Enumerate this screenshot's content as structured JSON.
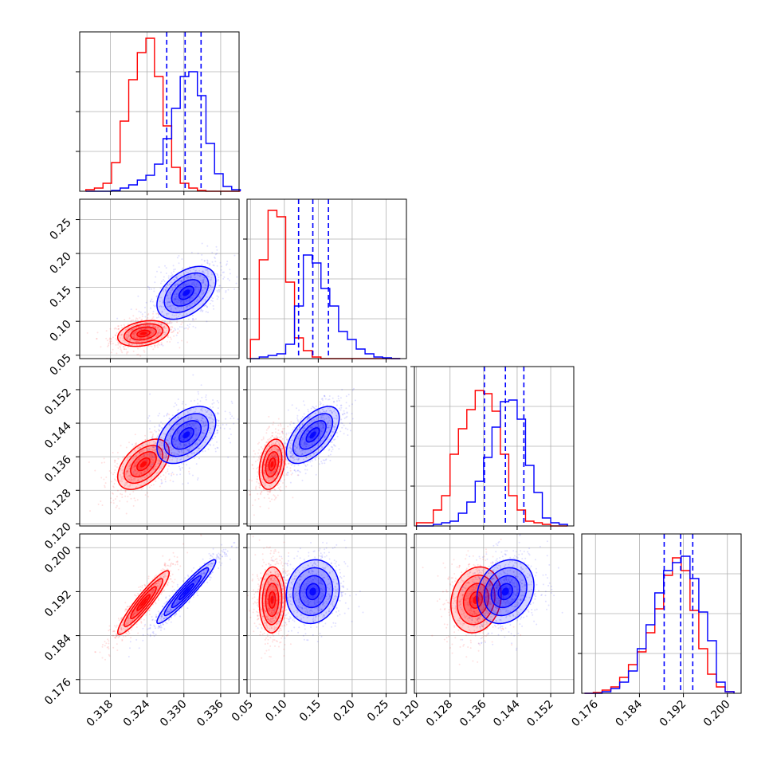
{
  "chart_data": {
    "type": "scatter",
    "kind": "corner",
    "title": "",
    "grid": true,
    "colors": {
      "red": "#ff0000",
      "blue": "#0000ff"
    },
    "series": [
      {
        "color": "red",
        "mean": [
          0.3234,
          0.082,
          0.1342,
          0.19
        ]
      },
      {
        "color": "blue",
        "mean": [
          0.3304,
          0.142,
          0.1412,
          0.192
        ]
      }
    ],
    "quantiles_blue": [
      [
        0.3272,
        0.3302,
        0.3328
      ],
      [
        0.121,
        0.142,
        0.165
      ],
      [
        0.1362,
        0.1412,
        0.1456
      ],
      [
        0.1885,
        0.1915,
        0.1937
      ]
    ],
    "parameters": [
      {
        "range": [
          0.313,
          0.339
        ],
        "ticks": [
          0.318,
          0.324,
          0.33,
          0.336
        ],
        "tick_labels": [
          "0.318",
          "0.324",
          "0.330",
          "0.336"
        ]
      },
      {
        "range": [
          0.045,
          0.28
        ],
        "ticks": [
          0.05,
          0.1,
          0.15,
          0.2,
          0.25
        ],
        "tick_labels": [
          "0.05",
          "0.10",
          "0.15",
          "0.20",
          "0.25"
        ]
      },
      {
        "range": [
          0.1195,
          0.1575
        ],
        "ticks": [
          0.12,
          0.128,
          0.136,
          0.144,
          0.152
        ],
        "tick_labels": [
          "0.120",
          "0.128",
          "0.136",
          "0.144",
          "0.152"
        ]
      },
      {
        "range": [
          0.1735,
          0.2025
        ],
        "ticks": [
          0.176,
          0.184,
          0.192,
          0.2
        ],
        "tick_labels": [
          "0.176",
          "0.184",
          "0.192",
          "0.200"
        ]
      }
    ],
    "diag_ticks": [
      {
        "ticks": [
          0.25,
          0.5,
          0.75
        ]
      },
      {
        "ticks": [
          0.25,
          0.5,
          0.75
        ]
      },
      {
        "ticks": [
          0.25,
          0.5,
          0.75,
          1.0
        ]
      },
      {
        "ticks": [
          0.25,
          0.5,
          0.75
        ]
      }
    ],
    "histograms": [
      {
        "edges": [
          0.314,
          0.3154,
          0.3168,
          0.3182,
          0.3196,
          0.321,
          0.3224,
          0.3238,
          0.3252,
          0.3266,
          0.328,
          0.3294,
          0.3308,
          0.3322,
          0.3336,
          0.335,
          0.3364,
          0.3378,
          0.3392
        ],
        "red": [
          0.01,
          0.02,
          0.05,
          0.18,
          0.44,
          0.7,
          0.87,
          0.96,
          0.72,
          0.41,
          0.15,
          0.05,
          0.02,
          0.005,
          0,
          0,
          0,
          0
        ],
        "blue": [
          0,
          0,
          0,
          0.005,
          0.02,
          0.04,
          0.07,
          0.1,
          0.17,
          0.33,
          0.52,
          0.72,
          0.75,
          0.6,
          0.3,
          0.11,
          0.03,
          0.01
        ]
      },
      {
        "edges": [
          0.05,
          0.063,
          0.076,
          0.089,
          0.102,
          0.115,
          0.128,
          0.141,
          0.154,
          0.167,
          0.18,
          0.193,
          0.206,
          0.219,
          0.232,
          0.245,
          0.258,
          0.271
        ],
        "red": [
          0.12,
          0.62,
          0.93,
          0.89,
          0.48,
          0.13,
          0.05,
          0.01,
          0,
          0,
          0,
          0,
          0,
          0,
          0,
          0,
          0
        ],
        "blue": [
          0,
          0.01,
          0.02,
          0.03,
          0.09,
          0.33,
          0.65,
          0.6,
          0.44,
          0.33,
          0.17,
          0.12,
          0.06,
          0.03,
          0.01,
          0.005,
          0
        ]
      },
      {
        "edges": [
          0.12,
          0.122,
          0.124,
          0.126,
          0.128,
          0.13,
          0.132,
          0.134,
          0.136,
          0.138,
          0.14,
          0.142,
          0.144,
          0.146,
          0.148,
          0.15,
          0.152,
          0.154,
          0.156
        ],
        "red": [
          0.02,
          0.02,
          0.1,
          0.19,
          0.45,
          0.61,
          0.73,
          0.85,
          0.83,
          0.72,
          0.45,
          0.19,
          0.1,
          0.03,
          0.02,
          0.01,
          0,
          0
        ],
        "blue": [
          0,
          0,
          0.01,
          0.02,
          0.03,
          0.08,
          0.15,
          0.28,
          0.43,
          0.62,
          0.78,
          0.79,
          0.67,
          0.38,
          0.21,
          0.05,
          0.02,
          0.01
        ]
      },
      {
        "edges": [
          0.174,
          0.1756,
          0.1772,
          0.1788,
          0.1804,
          0.182,
          0.1836,
          0.1852,
          0.1868,
          0.1884,
          0.19,
          0.1916,
          0.1932,
          0.1948,
          0.1964,
          0.198,
          0.1996,
          0.2012
        ],
        "red": [
          0,
          0.005,
          0.02,
          0.04,
          0.1,
          0.18,
          0.26,
          0.38,
          0.53,
          0.74,
          0.85,
          0.77,
          0.52,
          0.28,
          0.12,
          0.04,
          0.01
        ],
        "blue": [
          0,
          0,
          0.01,
          0.03,
          0.07,
          0.14,
          0.28,
          0.43,
          0.63,
          0.77,
          0.82,
          0.86,
          0.72,
          0.51,
          0.33,
          0.07,
          0.01
        ]
      }
    ],
    "panels_2d": [
      {
        "row": 1,
        "col": 0,
        "red": {
          "mean": [
            0.3234,
            0.082
          ],
          "sd": [
            0.0021,
            0.0095
          ],
          "rho": 0.3
        },
        "blue": {
          "mean": [
            0.3304,
            0.142
          ],
          "sd": [
            0.0024,
            0.0195
          ],
          "rho": 0.45
        }
      },
      {
        "row": 2,
        "col": 0,
        "red": {
          "mean": [
            0.3234,
            0.1342
          ],
          "sd": [
            0.0021,
            0.003
          ],
          "rho": 0.5
        },
        "blue": {
          "mean": [
            0.3304,
            0.1412
          ],
          "sd": [
            0.0024,
            0.0034
          ],
          "rho": 0.45
        }
      },
      {
        "row": 2,
        "col": 1,
        "red": {
          "mean": [
            0.082,
            0.1342
          ],
          "sd": [
            0.0095,
            0.003
          ],
          "rho": 0.3
        },
        "blue": {
          "mean": [
            0.142,
            0.1412
          ],
          "sd": [
            0.0195,
            0.0034
          ],
          "rho": 0.6
        }
      },
      {
        "row": 3,
        "col": 0,
        "red": {
          "mean": [
            0.3234,
            0.19
          ],
          "sd": [
            0.0021,
            0.0029
          ],
          "rho": 0.93
        },
        "blue": {
          "mean": [
            0.3304,
            0.192
          ],
          "sd": [
            0.0024,
            0.0029
          ],
          "rho": 0.95
        }
      },
      {
        "row": 3,
        "col": 1,
        "red": {
          "mean": [
            0.082,
            0.1905
          ],
          "sd": [
            0.0095,
            0.003
          ],
          "rho": 0.05
        },
        "blue": {
          "mean": [
            0.142,
            0.192
          ],
          "sd": [
            0.0195,
            0.0029
          ],
          "rho": 0.1
        }
      },
      {
        "row": 3,
        "col": 2,
        "red": {
          "mean": [
            0.1342,
            0.1905
          ],
          "sd": [
            0.003,
            0.003
          ],
          "rho": 0.15
        },
        "blue": {
          "mean": [
            0.1412,
            0.192
          ],
          "sd": [
            0.0034,
            0.0029
          ],
          "rho": 0.2
        }
      }
    ]
  }
}
